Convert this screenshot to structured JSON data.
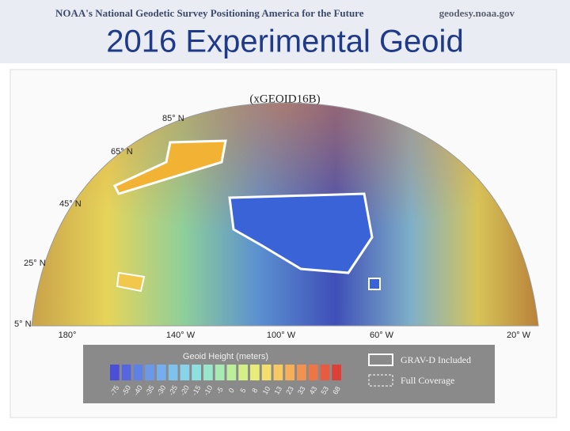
{
  "header": {
    "agency": "NOAA's National Geodetic Survey Positioning America for the Future",
    "website": "geodesy.noaa.gov",
    "title": "2016 Experimental Geoid"
  },
  "map": {
    "title": "(xGEOID16B)",
    "latitude_labels": [
      "85° N",
      "65° N",
      "45° N",
      "25° N",
      "5° N"
    ],
    "longitude_labels": [
      "180°",
      "140° W",
      "100° W",
      "60° W",
      "20° W"
    ],
    "legend": {
      "title": "Geoid Height (meters)",
      "swatches": [
        {
          "label": "-75",
          "color": "#4b4fd8"
        },
        {
          "label": "-50",
          "color": "#5566e0"
        },
        {
          "label": "-40",
          "color": "#5f80e6"
        },
        {
          "label": "-35",
          "color": "#6a98ea"
        },
        {
          "label": "-30",
          "color": "#74aeee"
        },
        {
          "label": "-25",
          "color": "#7ec3ee"
        },
        {
          "label": "-20",
          "color": "#86d3ea"
        },
        {
          "label": "-15",
          "color": "#8edfe0"
        },
        {
          "label": "-10",
          "color": "#98e6cc"
        },
        {
          "label": "-5",
          "color": "#a8eab4"
        },
        {
          "label": "0",
          "color": "#bdee9c"
        },
        {
          "label": "5",
          "color": "#d4ef88"
        },
        {
          "label": "8",
          "color": "#e8ec78"
        },
        {
          "label": "10",
          "color": "#f4df6c"
        },
        {
          "label": "13",
          "color": "#f8c862"
        },
        {
          "label": "23",
          "color": "#f7ae58"
        },
        {
          "label": "33",
          "color": "#f3924e"
        },
        {
          "label": "43",
          "color": "#ee7646"
        },
        {
          "label": "53",
          "color": "#e75c40"
        },
        {
          "label": "68",
          "color": "#de4038"
        }
      ],
      "items": [
        "GRAV-D Included",
        "Full Coverage"
      ]
    }
  }
}
